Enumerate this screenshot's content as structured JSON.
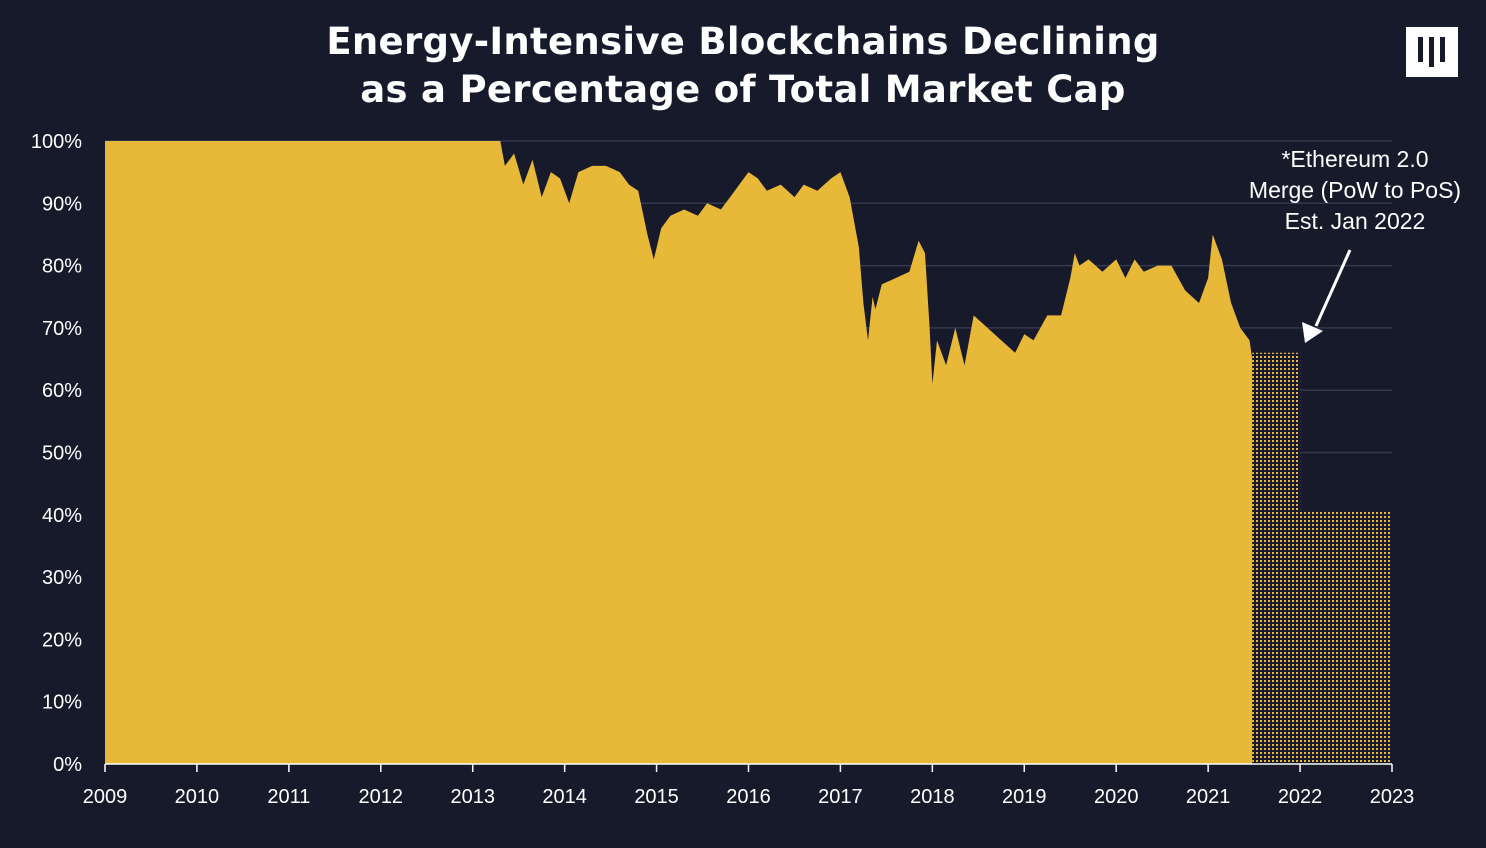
{
  "title_line1": "Energy-Intensive Blockchains Declining",
  "title_line2": "as a Percentage of Total Market Cap",
  "annotation": {
    "line1": "*Ethereum 2.0",
    "line2": "Merge (PoW to PoS)",
    "line3": "Est. Jan 2022"
  },
  "colors": {
    "background": "#171a2b",
    "fill": "#e8b838",
    "gridline": "#34384c",
    "text": "#ffffff"
  },
  "chart_data": {
    "type": "area",
    "title": "Energy-Intensive Blockchains Declining as a Percentage of Total Market Cap",
    "xlabel": "",
    "ylabel": "",
    "xlim": [
      2009,
      2023
    ],
    "ylim": [
      0,
      100
    ],
    "x_ticks": [
      "2009",
      "2010",
      "2011",
      "2012",
      "2013",
      "2014",
      "2015",
      "2016",
      "2017",
      "2018",
      "2019",
      "2020",
      "2021",
      "2022",
      "2023"
    ],
    "y_ticks": [
      "0%",
      "10%",
      "20%",
      "30%",
      "40%",
      "50%",
      "60%",
      "70%",
      "80%",
      "90%",
      "100%"
    ],
    "grid": true,
    "series": [
      {
        "style": "solid",
        "x": [
          2009.0,
          2013.3,
          2013.35,
          2013.45,
          2013.55,
          2013.65,
          2013.75,
          2013.85,
          2013.95,
          2014.05,
          2014.15,
          2014.3,
          2014.45,
          2014.6,
          2014.7,
          2014.8,
          2014.9,
          2014.97,
          2015.05,
          2015.15,
          2015.3,
          2015.45,
          2015.55,
          2015.7,
          2015.8,
          2015.9,
          2016.0,
          2016.1,
          2016.2,
          2016.35,
          2016.5,
          2016.6,
          2016.75,
          2016.9,
          2017.0,
          2017.1,
          2017.2,
          2017.25,
          2017.3,
          2017.35,
          2017.38,
          2017.45,
          2017.6,
          2017.75,
          2017.85,
          2017.92,
          2017.97,
          2018.0,
          2018.05,
          2018.15,
          2018.25,
          2018.35,
          2018.45,
          2018.6,
          2018.75,
          2018.9,
          2019.0,
          2019.1,
          2019.25,
          2019.4,
          2019.5,
          2019.55,
          2019.6,
          2019.7,
          2019.85,
          2020.0,
          2020.1,
          2020.2,
          2020.3,
          2020.45,
          2020.6,
          2020.75,
          2020.9,
          2021.0,
          2021.05,
          2021.15,
          2021.25,
          2021.35,
          2021.45,
          2021.48
        ],
        "values": [
          100,
          100,
          96,
          98,
          93,
          97,
          91,
          95,
          94,
          90,
          95,
          96,
          96,
          95,
          93,
          92,
          85,
          81,
          86,
          88,
          89,
          88,
          90,
          89,
          91,
          93,
          95,
          94,
          92,
          93,
          91,
          93,
          92,
          94,
          95,
          91,
          83,
          74,
          68,
          75,
          73,
          77,
          78,
          79,
          84,
          82,
          70,
          61,
          68,
          64,
          70,
          64,
          72,
          70,
          68,
          66,
          69,
          68,
          72,
          72,
          78,
          82,
          80,
          81,
          79,
          81,
          78,
          81,
          79,
          80,
          80,
          76,
          74,
          78,
          85,
          81,
          74,
          70,
          68,
          65
        ]
      },
      {
        "style": "dotted",
        "x": [
          2021.48,
          2022.0,
          2022.0,
          2023.0
        ],
        "values": [
          66,
          66,
          40.5,
          40.5
        ]
      }
    ]
  }
}
